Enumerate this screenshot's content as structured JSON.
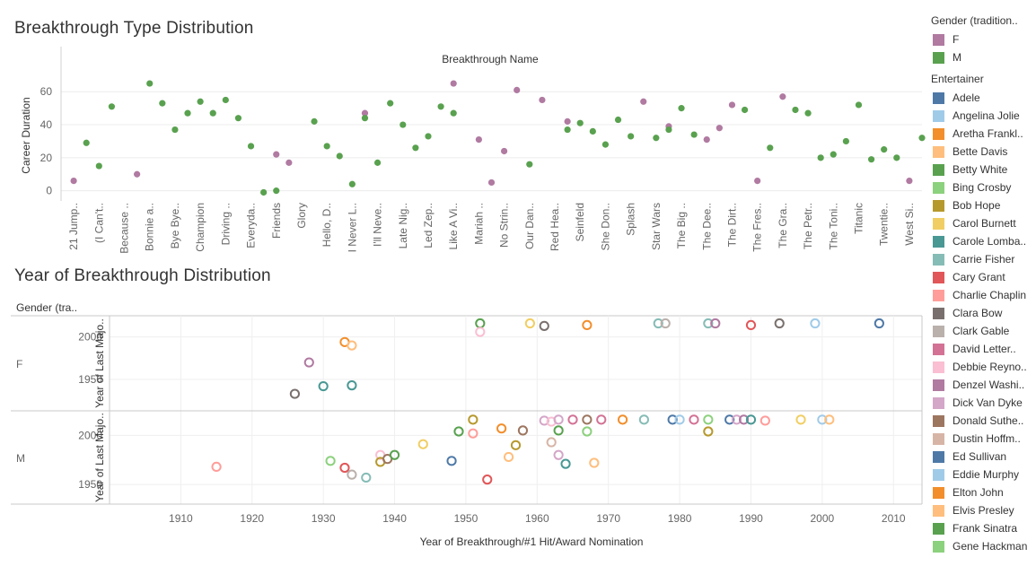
{
  "chart_data": [
    {
      "type": "scatter",
      "title": "Breakthrough Type Distribution",
      "column_header": "Breakthrough Name",
      "ylabel": "Career Duration",
      "yticks": [
        0,
        20,
        40,
        60
      ],
      "ylim": [
        -4,
        71
      ],
      "xticks": [
        "21 Jump..",
        "(I Can't..",
        "Because ..",
        "Bonnie a..",
        "Bye Bye..",
        "Champion",
        "Driving ..",
        "Everyda..",
        "Friends",
        "Glory",
        "Hello, D..",
        "I Never L..",
        "I'll Neve..",
        "Late Nig..",
        "Led Zep..",
        "Like A Vi..",
        "Mariah ..",
        "No Strin..",
        "Our Dan..",
        "Red Hea..",
        "Seinfeld",
        "She Don..",
        "Splash",
        "Star Wars",
        "The Big ..",
        "The Dee..",
        "The Dirt..",
        "The Fres..",
        "The Gra..",
        "The Petr..",
        "The Toni..",
        "Titanic",
        "Twentie..",
        "West Si.."
      ],
      "series": [
        {
          "name": "F",
          "color": "#b07aa1",
          "points": [
            [
              0,
              6
            ],
            [
              2.5,
              10
            ],
            [
              8,
              22
            ],
            [
              8.5,
              17
            ],
            [
              11.5,
              47
            ],
            [
              15,
              65
            ],
            [
              16,
              31
            ],
            [
              16.5,
              5
            ],
            [
              17,
              24
            ],
            [
              17.5,
              61
            ],
            [
              18.5,
              55
            ],
            [
              19.5,
              42
            ],
            [
              22.5,
              54
            ],
            [
              23.5,
              39
            ],
            [
              25,
              31
            ],
            [
              25.5,
              38
            ],
            [
              26,
              52
            ],
            [
              27,
              6
            ],
            [
              28,
              57
            ],
            [
              33,
              6
            ]
          ]
        },
        {
          "name": "M",
          "color": "#59a14f",
          "points": [
            [
              0.5,
              29
            ],
            [
              1,
              15
            ],
            [
              1.5,
              51
            ],
            [
              3,
              65
            ],
            [
              3.5,
              53
            ],
            [
              4,
              37
            ],
            [
              4.5,
              47
            ],
            [
              5,
              54
            ],
            [
              5.5,
              47
            ],
            [
              6,
              55
            ],
            [
              6.5,
              44
            ],
            [
              7,
              27
            ],
            [
              7.5,
              -1
            ],
            [
              8,
              0
            ],
            [
              9.5,
              42
            ],
            [
              10,
              27
            ],
            [
              10.5,
              21
            ],
            [
              11,
              4
            ],
            [
              11.5,
              44
            ],
            [
              12,
              17
            ],
            [
              12.5,
              53
            ],
            [
              13,
              40
            ],
            [
              13.5,
              26
            ],
            [
              14,
              33
            ],
            [
              14.5,
              51
            ],
            [
              15,
              47
            ],
            [
              18,
              16
            ],
            [
              19.5,
              37
            ],
            [
              20,
              41
            ],
            [
              20.5,
              36
            ],
            [
              21,
              28
            ],
            [
              21.5,
              43
            ],
            [
              22,
              33
            ],
            [
              23,
              32
            ],
            [
              23.5,
              37
            ],
            [
              24,
              50
            ],
            [
              24.5,
              34
            ],
            [
              26.5,
              49
            ],
            [
              27.5,
              26
            ],
            [
              28.5,
              49
            ],
            [
              29,
              47
            ],
            [
              29.5,
              20
            ],
            [
              30,
              22
            ],
            [
              30.5,
              30
            ],
            [
              31,
              52
            ],
            [
              31.5,
              19
            ],
            [
              32,
              25
            ],
            [
              32.5,
              20
            ],
            [
              33.5,
              32
            ],
            [
              34,
              42
            ]
          ]
        }
      ]
    },
    {
      "type": "scatter",
      "title": "Year of Breakthrough Distribution",
      "row_header": "Gender (tra..",
      "xlabel": "Year of Breakthrough/#1 Hit/Award Nomination",
      "ylabel": "Year of Last Majo..",
      "xticks": [
        1910,
        1920,
        1930,
        1940,
        1950,
        1960,
        1970,
        1980,
        1990,
        2000,
        2010
      ],
      "xlim": [
        1900,
        2014
      ],
      "panels": [
        {
          "label": "F",
          "yticks": [
            1950,
            2000
          ],
          "ylim": [
            1913,
            2025
          ],
          "points": [
            [
              1926,
              1933,
              "#79706e"
            ],
            [
              1928,
              1970,
              "#b07aa1"
            ],
            [
              1930,
              1942,
              "#499894"
            ],
            [
              1933,
              1994,
              "#f28e2b"
            ],
            [
              1934,
              1990,
              "#ffbe7d"
            ],
            [
              1934,
              1943,
              "#499894"
            ],
            [
              1952,
              2016,
              "#59a14f"
            ],
            [
              1952,
              2006,
              "#fabfd2"
            ],
            [
              1959,
              2016,
              "#f1ce63"
            ],
            [
              1961,
              2013,
              "#79706e"
            ],
            [
              1967,
              2014,
              "#f28e2b"
            ],
            [
              1977,
              2016,
              "#86bcb6"
            ],
            [
              1978,
              2016,
              "#bab0ac"
            ],
            [
              1984,
              2016,
              "#86bcb6"
            ],
            [
              1985,
              2016,
              "#b07aa1"
            ],
            [
              1990,
              2014,
              "#e15759"
            ],
            [
              1994,
              2016,
              "#79706e"
            ],
            [
              1999,
              2016,
              "#a0cbe8"
            ],
            [
              2008,
              2016,
              "#4e79a7"
            ]
          ]
        },
        {
          "label": "M",
          "yticks": [
            1950,
            2000
          ],
          "ylim": [
            1930,
            2025
          ],
          "points": [
            [
              1915,
              1968,
              "#ff9d9a"
            ],
            [
              1931,
              1974,
              "#8cd17d"
            ],
            [
              1933,
              1967,
              "#e15759"
            ],
            [
              1934,
              1960,
              "#bab0ac"
            ],
            [
              1936,
              1957,
              "#86bcb6"
            ],
            [
              1938,
              1980,
              "#fabfd2"
            ],
            [
              1938,
              1973,
              "#b6992d"
            ],
            [
              1939,
              1976,
              "#9d7660"
            ],
            [
              1940,
              1980,
              "#59a14f"
            ],
            [
              1944,
              1991,
              "#f1ce63"
            ],
            [
              1948,
              1974,
              "#4e79a7"
            ],
            [
              1949,
              2004,
              "#59a14f"
            ],
            [
              1951,
              2016,
              "#b6992d"
            ],
            [
              1951,
              2002,
              "#ff9d9a"
            ],
            [
              1953,
              1955,
              "#e15759"
            ],
            [
              1955,
              2007,
              "#f28e2b"
            ],
            [
              1956,
              1978,
              "#ffbe7d"
            ],
            [
              1957,
              1990,
              "#b6992d"
            ],
            [
              1958,
              2005,
              "#9d7660"
            ],
            [
              1961,
              2015,
              "#d4a6c8"
            ],
            [
              1962,
              1993,
              "#d7b5a6"
            ],
            [
              1962,
              2014,
              "#fabfd2"
            ],
            [
              1963,
              2016,
              "#d4a6c8"
            ],
            [
              1963,
              2005,
              "#59a14f"
            ],
            [
              1963,
              1980,
              "#d4a6c8"
            ],
            [
              1964,
              1971,
              "#499894"
            ],
            [
              1965,
              2016,
              "#d37295"
            ],
            [
              1967,
              2016,
              "#9d7660"
            ],
            [
              1967,
              2004,
              "#8cd17d"
            ],
            [
              1968,
              1972,
              "#ffbe7d"
            ],
            [
              1969,
              2016,
              "#d37295"
            ],
            [
              1972,
              2016,
              "#f28e2b"
            ],
            [
              1975,
              2016,
              "#86bcb6"
            ],
            [
              1979,
              2016,
              "#4e79a7"
            ],
            [
              1980,
              2016,
              "#a0cbe8"
            ],
            [
              1982,
              2016,
              "#d37295"
            ],
            [
              1984,
              2016,
              "#8cd17d"
            ],
            [
              1984,
              2004,
              "#b6992d"
            ],
            [
              1987,
              2016,
              "#4e79a7"
            ],
            [
              1988,
              2016,
              "#d4a6c8"
            ],
            [
              1989,
              2016,
              "#b07aa1"
            ],
            [
              1990,
              2016,
              "#499894"
            ],
            [
              1992,
              2015,
              "#ff9d9a"
            ],
            [
              1997,
              2016,
              "#f1ce63"
            ],
            [
              2000,
              2016,
              "#a0cbe8"
            ],
            [
              2001,
              2016,
              "#ffbe7d"
            ]
          ]
        }
      ]
    }
  ],
  "legend": {
    "gender_title": "Gender (tradition..",
    "gender": [
      {
        "label": "F",
        "color": "#b07aa1"
      },
      {
        "label": "M",
        "color": "#59a14f"
      }
    ],
    "entertainer_title": "Entertainer",
    "entertainers": [
      {
        "label": "Adele",
        "color": "#4e79a7"
      },
      {
        "label": "Angelina Jolie",
        "color": "#a0cbe8"
      },
      {
        "label": "Aretha Frankl..",
        "color": "#f28e2b"
      },
      {
        "label": "Bette Davis",
        "color": "#ffbe7d"
      },
      {
        "label": "Betty White",
        "color": "#59a14f"
      },
      {
        "label": "Bing Crosby",
        "color": "#8cd17d"
      },
      {
        "label": "Bob Hope",
        "color": "#b6992d"
      },
      {
        "label": "Carol Burnett",
        "color": "#f1ce63"
      },
      {
        "label": "Carole Lomba..",
        "color": "#499894"
      },
      {
        "label": "Carrie Fisher",
        "color": "#86bcb6"
      },
      {
        "label": "Cary Grant",
        "color": "#e15759"
      },
      {
        "label": "Charlie Chaplin",
        "color": "#ff9d9a"
      },
      {
        "label": "Clara Bow",
        "color": "#79706e"
      },
      {
        "label": "Clark Gable",
        "color": "#bab0ac"
      },
      {
        "label": "David Letter..",
        "color": "#d37295"
      },
      {
        "label": "Debbie Reyno..",
        "color": "#fabfd2"
      },
      {
        "label": "Denzel Washi..",
        "color": "#b07aa1"
      },
      {
        "label": "Dick Van Dyke",
        "color": "#d4a6c8"
      },
      {
        "label": "Donald Suthe..",
        "color": "#9d7660"
      },
      {
        "label": "Dustin Hoffm..",
        "color": "#d7b5a6"
      },
      {
        "label": "Ed Sullivan",
        "color": "#4e79a7"
      },
      {
        "label": "Eddie Murphy",
        "color": "#a0cbe8"
      },
      {
        "label": "Elton John",
        "color": "#f28e2b"
      },
      {
        "label": "Elvis Presley",
        "color": "#ffbe7d"
      },
      {
        "label": "Frank Sinatra",
        "color": "#59a14f"
      },
      {
        "label": "Gene Hackman",
        "color": "#8cd17d"
      }
    ]
  }
}
